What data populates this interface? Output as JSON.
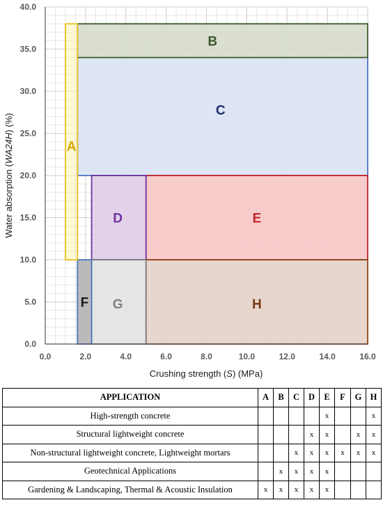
{
  "chart_data": {
    "type": "region-map",
    "xlabel_parts": [
      "Crushing strength (",
      "S",
      ") (MPa)"
    ],
    "ylabel_parts": [
      "Water absorption (",
      "WA24H",
      ") (%)"
    ],
    "xlim": [
      0,
      16
    ],
    "ylim": [
      0,
      40
    ],
    "x_ticks": [
      0,
      2,
      4,
      6,
      8,
      10,
      12,
      14,
      16
    ],
    "y_ticks": [
      0,
      5,
      10,
      15,
      20,
      25,
      30,
      35,
      40
    ],
    "x_tick_labels": [
      "0.0",
      "2.0",
      "4.0",
      "6.0",
      "8.0",
      "10.0",
      "12.0",
      "14.0",
      "16.0"
    ],
    "y_tick_labels": [
      "0.0",
      "5.0",
      "10.0",
      "15.0",
      "20.0",
      "25.0",
      "30.0",
      "35.0",
      "40.0"
    ],
    "grid": true,
    "minor_grid_step_x": 0.5,
    "minor_grid_step_y": 1,
    "regions": [
      {
        "label": "C",
        "x0": 1.6,
        "x1": 16,
        "y0": 20,
        "y1": 34,
        "fill": "#dae3f5",
        "stroke": "#4a72c4",
        "text": "#1f2d6a",
        "label_x": 8.7,
        "label_y": 27.8
      },
      {
        "label": "B",
        "x0": 1.6,
        "x1": 16,
        "y0": 34,
        "y1": 38,
        "fill": "#d6dccd",
        "stroke": "#3d5a2a",
        "text": "#3d5a2a",
        "label_x": 8.3,
        "label_y": 36
      },
      {
        "label": "E",
        "x0": 5,
        "x1": 16,
        "y0": 10,
        "y1": 20,
        "fill": "#f8c6c6",
        "stroke": "#c0242a",
        "text": "#c0242a",
        "label_x": 10.5,
        "label_y": 15
      },
      {
        "label": "D",
        "x0": 2.3,
        "x1": 5,
        "y0": 10,
        "y1": 20,
        "fill": "#e0cde8",
        "stroke": "#7030a0",
        "text": "#7030a0",
        "label_x": 3.6,
        "label_y": 15
      },
      {
        "label": "H",
        "x0": 5,
        "x1": 16,
        "y0": 0,
        "y1": 10,
        "fill": "#e4d2c8",
        "stroke": "#8b4513",
        "text": "#7b3a12",
        "label_x": 10.5,
        "label_y": 4.8
      },
      {
        "label": "G",
        "x0": 2.3,
        "x1": 5,
        "y0": 0,
        "y1": 10,
        "fill": "#e3e3e3",
        "stroke": "#7a7a7a",
        "text": "#7f7f7f",
        "label_x": 3.6,
        "label_y": 4.8
      },
      {
        "label": "F",
        "x0": 1.6,
        "x1": 2.3,
        "y0": 0,
        "y1": 10,
        "fill": "#b4b4b4",
        "stroke": "#4a72c4",
        "text": "#1a1a1a",
        "label_x": 1.95,
        "label_y": 5
      },
      {
        "label": "A",
        "x0": 1.0,
        "x1": 1.6,
        "y0": 10,
        "y1": 38,
        "fill": "rgba(255,242,170,0.55)",
        "stroke": "#e8c020",
        "text": "#d4a800",
        "label_x": 1.3,
        "label_y": 23.5
      }
    ]
  },
  "table": {
    "header": "APPLICATION",
    "columns": [
      "A",
      "B",
      "C",
      "D",
      "E",
      "F",
      "G",
      "H"
    ],
    "rows": [
      {
        "label": "High-strength concrete",
        "marks": [
          "",
          "",
          "",
          "",
          "x",
          "",
          "",
          "x"
        ]
      },
      {
        "label": "Structural lightweight concrete",
        "marks": [
          "",
          "",
          "",
          "x",
          "x",
          "",
          "x",
          "x"
        ]
      },
      {
        "label": "Non-structural lightweight concrete, Lightweight mortars",
        "marks": [
          "",
          "",
          "x",
          "x",
          "x",
          "x",
          "x",
          "x"
        ]
      },
      {
        "label": "Geotechnical Applications",
        "marks": [
          "",
          "x",
          "x",
          "x",
          "x",
          "",
          "",
          ""
        ]
      },
      {
        "label": "Gardening & Landscaping, Thermal & Acoustic Insulation",
        "marks": [
          "x",
          "x",
          "x",
          "x",
          "x",
          "",
          "",
          ""
        ]
      }
    ]
  }
}
